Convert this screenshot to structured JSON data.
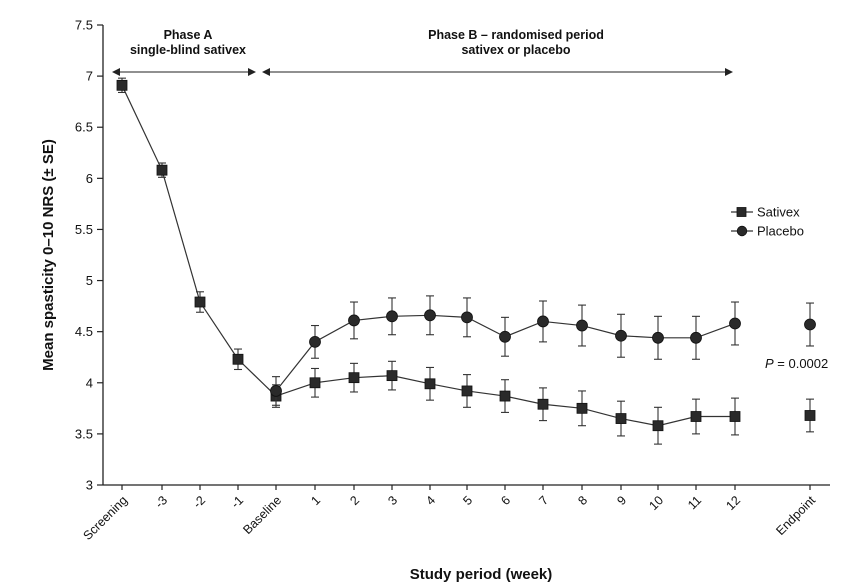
{
  "chart_data": {
    "type": "line",
    "xlabel": "Study period (week)",
    "ylabel": "Mean spasticity 0–10 NRS (± SE)",
    "ylim": [
      3,
      7.5
    ],
    "yticks": [
      "3",
      "3.5",
      "4",
      "4.5",
      "5",
      "5.5",
      "6",
      "6.5",
      "7",
      "7.5"
    ],
    "categories": [
      "Screening",
      "-3",
      "-2",
      "-1",
      "Baseline",
      "1",
      "2",
      "3",
      "4",
      "5",
      "6",
      "7",
      "8",
      "9",
      "10",
      "11",
      "12",
      "Endpoint"
    ],
    "phases": [
      {
        "title": "Phase A",
        "subtitle": "single-blind sativex",
        "start": "Screening",
        "end": "Baseline"
      },
      {
        "title": "Phase B – randomised period",
        "subtitle": "sativex or placebo",
        "start": "Baseline",
        "end": "12"
      }
    ],
    "legend": {
      "position": "right",
      "entries": [
        "Sativex",
        "Placebo"
      ]
    },
    "annotation": {
      "label": "P",
      "text": " = 0.0002",
      "near": "Endpoint"
    },
    "series": [
      {
        "name": "Sativex",
        "marker": "square",
        "values": [
          6.91,
          6.08,
          4.79,
          4.23,
          3.87,
          4.0,
          4.05,
          4.07,
          3.99,
          3.92,
          3.87,
          3.79,
          3.75,
          3.65,
          3.58,
          3.67,
          3.67,
          3.68
        ],
        "errors": [
          0.07,
          0.07,
          0.1,
          0.1,
          0.11,
          0.14,
          0.14,
          0.14,
          0.16,
          0.16,
          0.16,
          0.16,
          0.17,
          0.17,
          0.18,
          0.17,
          0.18,
          0.16
        ]
      },
      {
        "name": "Placebo",
        "marker": "circle",
        "values": [
          null,
          null,
          null,
          null,
          3.92,
          4.4,
          4.61,
          4.65,
          4.66,
          4.64,
          4.45,
          4.6,
          4.56,
          4.46,
          4.44,
          4.44,
          4.58,
          4.57
        ],
        "errors": [
          null,
          null,
          null,
          null,
          0.14,
          0.16,
          0.18,
          0.18,
          0.19,
          0.19,
          0.19,
          0.2,
          0.2,
          0.21,
          0.21,
          0.21,
          0.21,
          0.21
        ]
      }
    ]
  }
}
